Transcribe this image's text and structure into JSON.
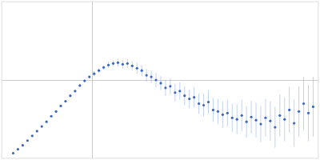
{
  "chart_data": {
    "type": "scatter",
    "x": [
      15,
      21,
      27,
      33,
      39,
      45,
      51,
      57,
      63,
      69,
      75,
      81,
      87,
      93,
      99,
      105,
      111,
      117,
      123,
      129,
      135,
      141,
      147,
      153,
      159,
      165,
      171,
      177,
      183,
      189,
      195,
      201,
      207,
      213,
      219,
      225,
      231,
      237,
      243,
      249,
      255,
      261,
      267,
      273,
      279,
      285,
      291,
      297,
      303,
      309,
      315,
      321,
      327,
      333,
      339,
      345,
      351,
      357,
      363,
      369,
      375,
      381,
      387,
      393
    ],
    "values": [
      7,
      12,
      17,
      23,
      29,
      35,
      41,
      47,
      54,
      60,
      67,
      73,
      80,
      86,
      93,
      99,
      104,
      108,
      112,
      116,
      119,
      121,
      122,
      120,
      121,
      118,
      115,
      112,
      106,
      104,
      100,
      96,
      90,
      92,
      84,
      86,
      80,
      76,
      78,
      70,
      68,
      72,
      62,
      60,
      56,
      58,
      52,
      50,
      55,
      47,
      53,
      49,
      44,
      52,
      48,
      40,
      55,
      50,
      62,
      45,
      60,
      70,
      58,
      66
    ],
    "errors": [
      1,
      1,
      1,
      1,
      1,
      1,
      1,
      1,
      1,
      1,
      1,
      1,
      2,
      2,
      2,
      2,
      2,
      3,
      3,
      3,
      4,
      4,
      5,
      5,
      6,
      6,
      7,
      7,
      8,
      8,
      9,
      9,
      10,
      10,
      11,
      11,
      12,
      12,
      13,
      13,
      14,
      15,
      15,
      16,
      17,
      17,
      18,
      19,
      20,
      20,
      21,
      22,
      23,
      24,
      25,
      26,
      27,
      28,
      29,
      30,
      32,
      34,
      36,
      38
    ],
    "color": "#3a66c4",
    "marker": "circle",
    "xlim": [
      0,
      400
    ],
    "ylim": [
      0,
      200
    ],
    "xticks": [
      115
    ],
    "yticks": [
      100
    ],
    "grid": true,
    "tick_labels": false
  }
}
